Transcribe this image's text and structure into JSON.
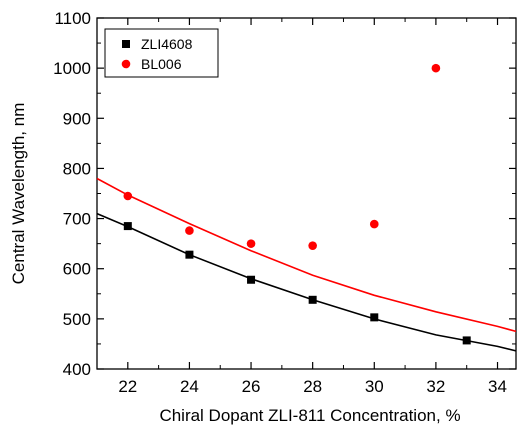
{
  "chart_data": {
    "type": "scatter",
    "title": "",
    "xlabel": "Chiral Dopant ZLI-811 Concentration, %",
    "ylabel": "Central Wavelength, nm",
    "xlim": [
      21,
      34.6
    ],
    "ylim": [
      400,
      1100
    ],
    "xticks": [
      22,
      24,
      26,
      28,
      30,
      32,
      34
    ],
    "yticks": [
      400,
      500,
      600,
      700,
      800,
      900,
      1000,
      1100
    ],
    "grid": false,
    "legend_position": "top-left",
    "series": [
      {
        "name": "ZLI4608",
        "marker": "square",
        "color": "#000000",
        "points": [
          [
            22,
            685
          ],
          [
            24,
            628
          ],
          [
            26,
            578
          ],
          [
            28,
            538
          ],
          [
            30,
            503
          ],
          [
            33,
            457
          ]
        ],
        "fit_curve": [
          [
            21,
            710
          ],
          [
            22,
            684
          ],
          [
            24,
            628
          ],
          [
            26,
            580
          ],
          [
            28,
            538
          ],
          [
            30,
            500
          ],
          [
            32,
            468
          ],
          [
            34,
            445
          ],
          [
            34.6,
            436
          ]
        ]
      },
      {
        "name": "BL006",
        "marker": "circle",
        "color": "#ff0000",
        "points": [
          [
            22,
            745
          ],
          [
            24,
            676
          ],
          [
            26,
            650
          ],
          [
            28,
            646
          ],
          [
            30,
            689
          ],
          [
            32,
            1000
          ]
        ],
        "fit_curve": [
          [
            21,
            780
          ],
          [
            22,
            747
          ],
          [
            24,
            690
          ],
          [
            26,
            636
          ],
          [
            28,
            587
          ],
          [
            30,
            547
          ],
          [
            32,
            514
          ],
          [
            34,
            485
          ],
          [
            34.6,
            475
          ]
        ]
      }
    ]
  }
}
